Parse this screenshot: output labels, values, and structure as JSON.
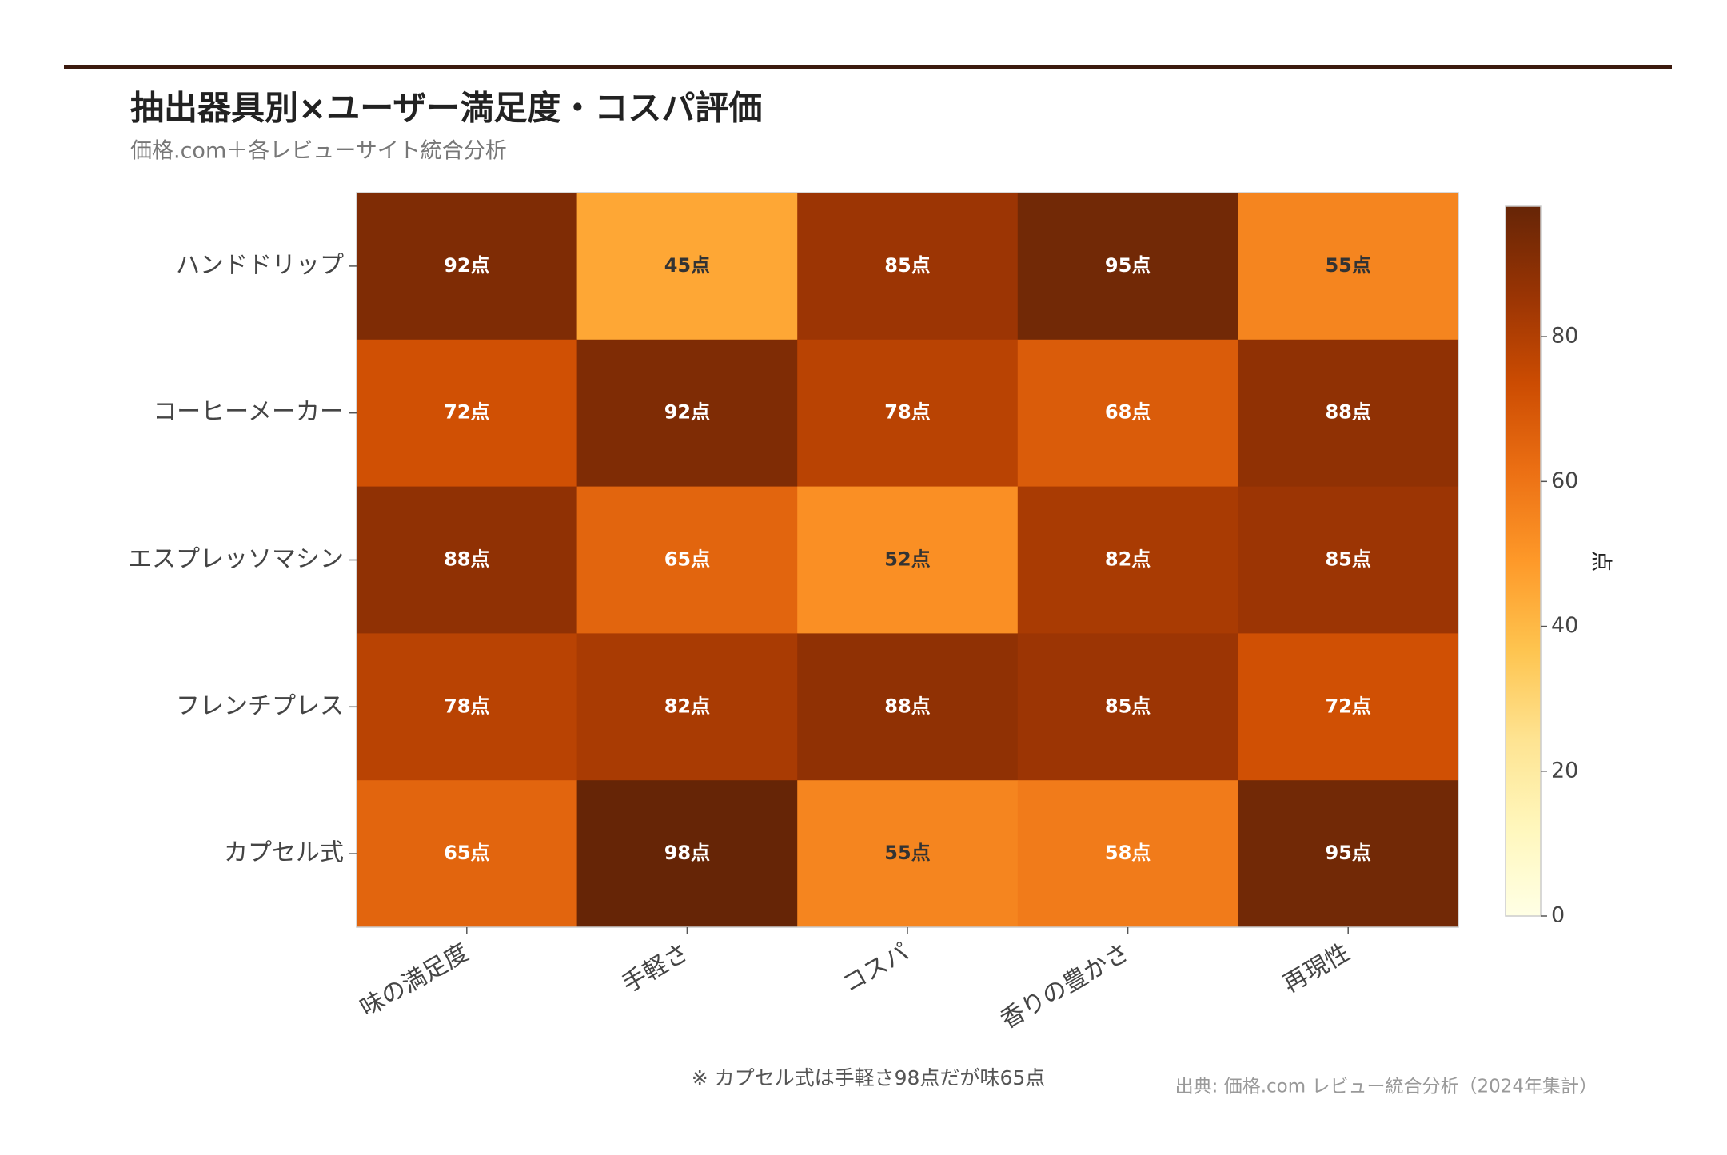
{
  "chart_data": {
    "type": "heatmap",
    "title": "抽出器具別×ユーザー満足度・コスパ評価",
    "subtitle": "価格.com＋各レビューサイト統合分析",
    "x_categories": [
      "味の満足度",
      "手軽さ",
      "コスパ",
      "香りの豊かさ",
      "再現性"
    ],
    "y_categories": [
      "ハンドドリップ",
      "コーヒーメーカー",
      "エスプレッソマシン",
      "フレンチプレス",
      "カプセル式"
    ],
    "values": [
      [
        92,
        45,
        85,
        95,
        55
      ],
      [
        72,
        92,
        78,
        68,
        88
      ],
      [
        88,
        65,
        52,
        82,
        85
      ],
      [
        78,
        82,
        88,
        85,
        72
      ],
      [
        65,
        98,
        55,
        58,
        95
      ]
    ],
    "value_labels": [
      [
        "92点",
        "45点",
        "85点",
        "95点",
        "55点"
      ],
      [
        "72点",
        "92点",
        "78点",
        "68点",
        "88点"
      ],
      [
        "88点",
        "65点",
        "52点",
        "82点",
        "85点"
      ],
      [
        "78点",
        "82点",
        "88点",
        "85点",
        "72点"
      ],
      [
        "65点",
        "98点",
        "55点",
        "58点",
        "95点"
      ]
    ],
    "colorbar": {
      "label": "点",
      "lim": [
        0,
        98
      ],
      "ticks": [
        0,
        20,
        40,
        60,
        80
      ]
    },
    "colormap": [
      "#ffffe5",
      "#fff7bc",
      "#fee391",
      "#fec44f",
      "#fe9929",
      "#ec7014",
      "#cc4c02",
      "#993404",
      "#662506"
    ],
    "annotation": "※ カプセル式は手軽さ98点だが味65点",
    "source": "出典: 価格.com レビュー統合分析（2024年集計）"
  }
}
